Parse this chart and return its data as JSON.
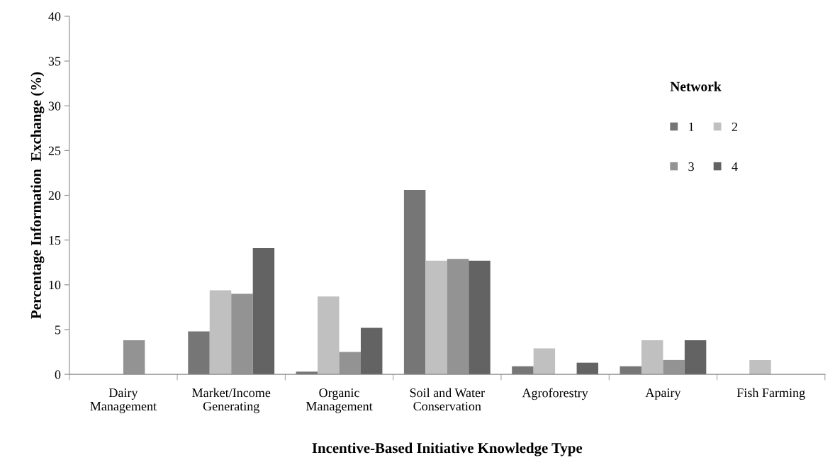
{
  "chart_data": {
    "type": "bar",
    "xlabel": "Incentive-Based Initiative Knowledge Type",
    "ylabel": "Percentage Information  Exchange (%)",
    "legend_title": "Network",
    "categories": [
      "Dairy\nManagement",
      "Market/Income\nGenerating",
      "Organic\nManagement",
      "Soil and Water\nConservation",
      "Agroforestry",
      "Apairy",
      "Fish Farming"
    ],
    "series": [
      {
        "name": "1",
        "color": "#767676",
        "values": [
          0,
          4.8,
          0.3,
          20.6,
          0.9,
          0.9,
          0
        ]
      },
      {
        "name": "2",
        "color": "#c0c0c0",
        "values": [
          0,
          9.4,
          8.7,
          12.7,
          2.9,
          3.8,
          1.6
        ]
      },
      {
        "name": "3",
        "color": "#939393",
        "values": [
          3.8,
          9.0,
          2.5,
          12.9,
          0,
          1.6,
          0
        ]
      },
      {
        "name": "4",
        "color": "#636363",
        "values": [
          0,
          14.1,
          5.2,
          12.7,
          1.3,
          3.8,
          0
        ]
      }
    ],
    "ylim": [
      0,
      40
    ],
    "yticks": [
      0,
      5,
      10,
      15,
      20,
      25,
      30,
      35,
      40
    ],
    "grid": false,
    "legend": "top right"
  }
}
